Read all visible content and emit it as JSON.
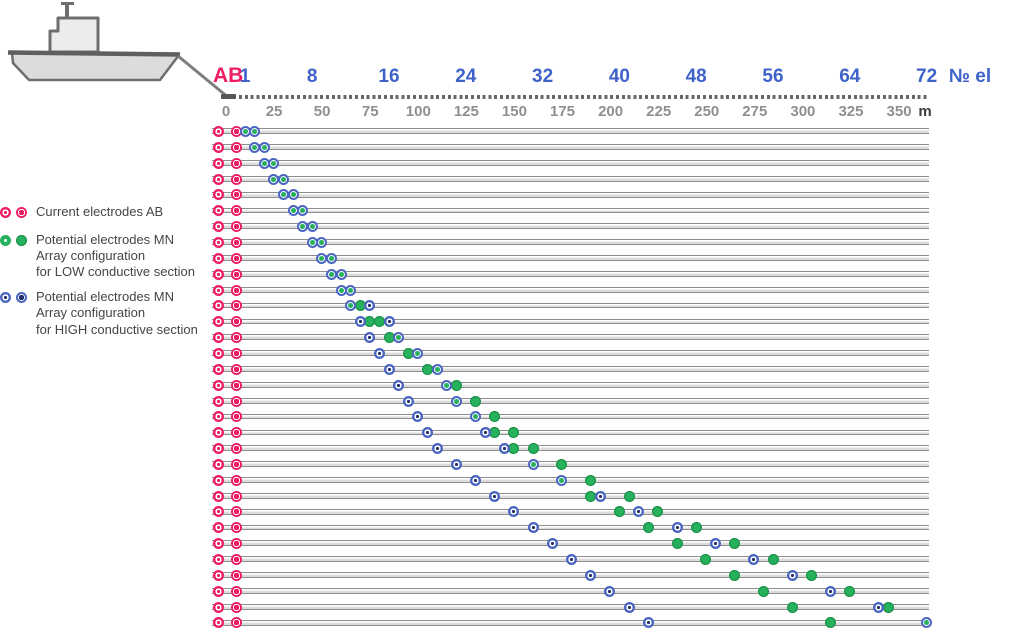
{
  "colors": {
    "pink": "#EE1D66",
    "green": "#27B15C",
    "blue": "#4B66C2",
    "navy": "#23306B",
    "axis_number_blue": "#3E62C9",
    "distance_gray": "#8F8F8F",
    "unit_dark": "#3F3F3F"
  },
  "axis": {
    "ab_label": "AB",
    "electrode_numbers": [
      1,
      8,
      16,
      24,
      32,
      40,
      48,
      56,
      64,
      72
    ],
    "electrode_axis_label": "№ el",
    "distance_ticks": [
      0,
      25,
      50,
      75,
      100,
      125,
      150,
      175,
      200,
      225,
      250,
      275,
      300,
      325,
      350
    ],
    "distance_unit": "m"
  },
  "legend": [
    {
      "marker": "ab",
      "lines": [
        "Current electrodes AB"
      ]
    },
    {
      "marker": "green",
      "lines": [
        "Potential electrodes MN",
        "Array configuration",
        "for LOW conductive section"
      ]
    },
    {
      "marker": "blue",
      "lines": [
        "Potential electrodes MN",
        "Array configuration",
        "for HIGH conductive section"
      ]
    }
  ],
  "array_rows": [
    {
      "overlap": [
        1,
        2
      ]
    },
    {
      "overlap": [
        2,
        3
      ]
    },
    {
      "overlap": [
        3,
        4
      ]
    },
    {
      "overlap": [
        4,
        5
      ]
    },
    {
      "overlap": [
        5,
        6
      ]
    },
    {
      "overlap": [
        6,
        7
      ]
    },
    {
      "overlap": [
        7,
        8
      ]
    },
    {
      "overlap": [
        8,
        9
      ]
    },
    {
      "overlap": [
        9,
        10
      ]
    },
    {
      "overlap": [
        10,
        11
      ]
    },
    {
      "overlap": [
        11,
        12
      ]
    },
    {
      "overlap": [
        12
      ],
      "green": [
        13
      ],
      "blue": [
        14
      ]
    },
    {
      "blue": [
        13,
        16
      ],
      "green": [
        14,
        15
      ]
    },
    {
      "blue": [
        14
      ],
      "green": [
        16
      ],
      "overlap": [
        17
      ]
    },
    {
      "blue": [
        15
      ],
      "green": [
        18
      ],
      "overlap": [
        19
      ]
    },
    {
      "blue": [
        16
      ],
      "green": [
        20
      ],
      "overlap": [
        21
      ]
    },
    {
      "blue": [
        17
      ],
      "overlap": [
        22
      ],
      "green": [
        23
      ]
    },
    {
      "blue": [
        18
      ],
      "overlap": [
        23
      ],
      "green": [
        25
      ]
    },
    {
      "blue": [
        19
      ],
      "overlap": [
        25
      ],
      "green": [
        27
      ]
    },
    {
      "blue": [
        20,
        26
      ],
      "green": [
        27,
        29
      ]
    },
    {
      "blue": [
        21,
        28
      ],
      "green": [
        29,
        31
      ]
    },
    {
      "blue": [
        23
      ],
      "overlap": [
        31
      ],
      "green": [
        34
      ]
    },
    {
      "blue": [
        25
      ],
      "overlap": [
        34
      ],
      "green": [
        37
      ]
    },
    {
      "blue": [
        27,
        38
      ],
      "green": [
        37,
        41
      ]
    },
    {
      "blue": [
        29,
        42
      ],
      "green": [
        40,
        44
      ]
    },
    {
      "blue": [
        31,
        46
      ],
      "green": [
        43,
        48
      ]
    },
    {
      "blue": [
        33,
        50
      ],
      "green": [
        46,
        52
      ]
    },
    {
      "blue": [
        35,
        54
      ],
      "green": [
        49,
        56
      ]
    },
    {
      "blue": [
        37,
        58
      ],
      "green": [
        52,
        60
      ]
    },
    {
      "blue": [
        39,
        62
      ],
      "green": [
        55,
        64
      ]
    },
    {
      "blue": [
        41,
        67
      ],
      "green": [
        58,
        68
      ]
    },
    {
      "blue": [
        43
      ],
      "green": [
        62
      ],
      "overlap": [
        72
      ]
    }
  ]
}
